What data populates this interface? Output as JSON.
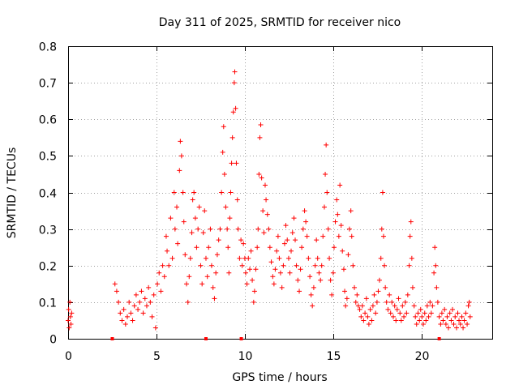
{
  "chart_data": {
    "type": "scatter",
    "title": "Day 311 of 2025, SRMTID for receiver nico",
    "xlabel": "GPS time / hours",
    "ylabel": "SRMTID / TECUs",
    "xlim": [
      0,
      24
    ],
    "ylim": [
      0,
      0.8
    ],
    "xticks": [
      0,
      5,
      10,
      15,
      20
    ],
    "xtick_labels": [
      "0",
      "5",
      "10",
      "15",
      "20"
    ],
    "yticks": [
      0,
      0.1,
      0.2,
      0.3,
      0.4,
      0.5,
      0.6,
      0.7,
      0.8
    ],
    "ytick_labels": [
      "0",
      "0.1",
      "0.2",
      "0.3",
      "0.4",
      "0.5",
      "0.6",
      "0.7",
      "0.8"
    ],
    "grid": true,
    "marker": "+",
    "color": "#ff0000",
    "baseline_markers": [
      2.5,
      7.8,
      9.8,
      21.0
    ],
    "series": [
      {
        "name": "SRMTID",
        "points": [
          [
            0.0,
            0.05
          ],
          [
            0.03,
            0.08
          ],
          [
            0.06,
            0.03
          ],
          [
            0.1,
            0.1
          ],
          [
            0.13,
            0.06
          ],
          [
            0.16,
            0.04
          ],
          [
            0.2,
            0.07
          ],
          [
            2.65,
            0.15
          ],
          [
            2.75,
            0.13
          ],
          [
            2.85,
            0.1
          ],
          [
            2.95,
            0.07
          ],
          [
            3.05,
            0.05
          ],
          [
            3.15,
            0.08
          ],
          [
            3.25,
            0.04
          ],
          [
            3.35,
            0.06
          ],
          [
            3.45,
            0.1
          ],
          [
            3.55,
            0.07
          ],
          [
            3.65,
            0.05
          ],
          [
            3.75,
            0.09
          ],
          [
            3.85,
            0.12
          ],
          [
            3.95,
            0.08
          ],
          [
            4.05,
            0.1
          ],
          [
            4.15,
            0.13
          ],
          [
            4.25,
            0.07
          ],
          [
            4.35,
            0.11
          ],
          [
            4.45,
            0.09
          ],
          [
            4.55,
            0.14
          ],
          [
            4.65,
            0.1
          ],
          [
            4.75,
            0.06
          ],
          [
            4.85,
            0.12
          ],
          [
            4.95,
            0.03
          ],
          [
            5.05,
            0.15
          ],
          [
            5.15,
            0.18
          ],
          [
            5.25,
            0.13
          ],
          [
            5.35,
            0.2
          ],
          [
            5.45,
            0.17
          ],
          [
            5.55,
            0.28
          ],
          [
            5.6,
            0.24
          ],
          [
            5.7,
            0.2
          ],
          [
            5.8,
            0.33
          ],
          [
            5.9,
            0.22
          ],
          [
            6.0,
            0.4
          ],
          [
            6.05,
            0.3
          ],
          [
            6.15,
            0.36
          ],
          [
            6.2,
            0.26
          ],
          [
            6.3,
            0.46
          ],
          [
            6.35,
            0.54
          ],
          [
            6.42,
            0.5
          ],
          [
            6.5,
            0.4
          ],
          [
            6.55,
            0.32
          ],
          [
            6.62,
            0.23
          ],
          [
            6.7,
            0.15
          ],
          [
            6.78,
            0.1
          ],
          [
            6.85,
            0.17
          ],
          [
            6.92,
            0.22
          ],
          [
            7.0,
            0.29
          ],
          [
            7.05,
            0.38
          ],
          [
            7.12,
            0.4
          ],
          [
            7.2,
            0.33
          ],
          [
            7.27,
            0.25
          ],
          [
            7.35,
            0.3
          ],
          [
            7.42,
            0.36
          ],
          [
            7.5,
            0.2
          ],
          [
            7.58,
            0.15
          ],
          [
            7.65,
            0.29
          ],
          [
            7.72,
            0.35
          ],
          [
            7.8,
            0.22
          ],
          [
            7.88,
            0.17
          ],
          [
            7.95,
            0.25
          ],
          [
            8.05,
            0.3
          ],
          [
            8.12,
            0.2
          ],
          [
            8.2,
            0.14
          ],
          [
            8.28,
            0.11
          ],
          [
            8.36,
            0.18
          ],
          [
            8.44,
            0.23
          ],
          [
            8.52,
            0.27
          ],
          [
            8.6,
            0.3
          ],
          [
            8.68,
            0.4
          ],
          [
            8.75,
            0.51
          ],
          [
            8.8,
            0.58
          ],
          [
            8.85,
            0.45
          ],
          [
            8.92,
            0.36
          ],
          [
            9.0,
            0.3
          ],
          [
            9.05,
            0.25
          ],
          [
            9.1,
            0.18
          ],
          [
            9.15,
            0.33
          ],
          [
            9.2,
            0.4
          ],
          [
            9.25,
            0.48
          ],
          [
            9.3,
            0.55
          ],
          [
            9.35,
            0.62
          ],
          [
            9.4,
            0.7
          ],
          [
            9.43,
            0.73
          ],
          [
            9.48,
            0.63
          ],
          [
            9.52,
            0.48
          ],
          [
            9.58,
            0.38
          ],
          [
            9.62,
            0.3
          ],
          [
            9.7,
            0.22
          ],
          [
            9.78,
            0.27
          ],
          [
            9.85,
            0.2
          ],
          [
            9.92,
            0.26
          ],
          [
            10.0,
            0.22
          ],
          [
            10.05,
            0.18
          ],
          [
            10.12,
            0.15
          ],
          [
            10.2,
            0.22
          ],
          [
            10.28,
            0.19
          ],
          [
            10.35,
            0.24
          ],
          [
            10.42,
            0.16
          ],
          [
            10.5,
            0.1
          ],
          [
            10.55,
            0.13
          ],
          [
            10.62,
            0.19
          ],
          [
            10.7,
            0.25
          ],
          [
            10.75,
            0.3
          ],
          [
            10.8,
            0.45
          ],
          [
            10.85,
            0.55
          ],
          [
            10.9,
            0.585
          ],
          [
            10.95,
            0.44
          ],
          [
            11.02,
            0.35
          ],
          [
            11.08,
            0.29
          ],
          [
            11.15,
            0.42
          ],
          [
            11.2,
            0.38
          ],
          [
            11.28,
            0.34
          ],
          [
            11.35,
            0.3
          ],
          [
            11.42,
            0.25
          ],
          [
            11.5,
            0.21
          ],
          [
            11.58,
            0.17
          ],
          [
            11.65,
            0.15
          ],
          [
            11.72,
            0.19
          ],
          [
            11.8,
            0.24
          ],
          [
            11.88,
            0.28
          ],
          [
            11.95,
            0.22
          ],
          [
            12.02,
            0.18
          ],
          [
            12.1,
            0.14
          ],
          [
            12.18,
            0.2
          ],
          [
            12.25,
            0.26
          ],
          [
            12.32,
            0.31
          ],
          [
            12.4,
            0.27
          ],
          [
            12.48,
            0.22
          ],
          [
            12.55,
            0.18
          ],
          [
            12.62,
            0.24
          ],
          [
            12.7,
            0.29
          ],
          [
            12.78,
            0.33
          ],
          [
            12.85,
            0.27
          ],
          [
            12.92,
            0.2
          ],
          [
            13.0,
            0.16
          ],
          [
            13.08,
            0.13
          ],
          [
            13.15,
            0.19
          ],
          [
            13.22,
            0.25
          ],
          [
            13.3,
            0.3
          ],
          [
            13.38,
            0.35
          ],
          [
            13.45,
            0.32
          ],
          [
            13.52,
            0.28
          ],
          [
            13.6,
            0.22
          ],
          [
            13.68,
            0.17
          ],
          [
            13.75,
            0.12
          ],
          [
            13.82,
            0.09
          ],
          [
            13.9,
            0.14
          ],
          [
            13.98,
            0.2
          ],
          [
            14.05,
            0.27
          ],
          [
            14.12,
            0.22
          ],
          [
            14.2,
            0.18
          ],
          [
            14.28,
            0.16
          ],
          [
            14.35,
            0.2
          ],
          [
            14.42,
            0.28
          ],
          [
            14.5,
            0.36
          ],
          [
            14.55,
            0.45
          ],
          [
            14.6,
            0.53
          ],
          [
            14.65,
            0.4
          ],
          [
            14.72,
            0.3
          ],
          [
            14.78,
            0.22
          ],
          [
            14.85,
            0.16
          ],
          [
            14.92,
            0.12
          ],
          [
            15.0,
            0.18
          ],
          [
            15.05,
            0.25
          ],
          [
            15.12,
            0.32
          ],
          [
            15.2,
            0.38
          ],
          [
            15.25,
            0.34
          ],
          [
            15.32,
            0.28
          ],
          [
            15.38,
            0.42
          ],
          [
            15.45,
            0.31
          ],
          [
            15.52,
            0.24
          ],
          [
            15.6,
            0.19
          ],
          [
            15.65,
            0.13
          ],
          [
            15.7,
            0.09
          ],
          [
            15.78,
            0.11
          ],
          [
            15.85,
            0.23
          ],
          [
            15.92,
            0.3
          ],
          [
            16.0,
            0.35
          ],
          [
            16.05,
            0.28
          ],
          [
            16.12,
            0.2
          ],
          [
            16.2,
            0.14
          ],
          [
            16.28,
            0.1
          ],
          [
            16.35,
            0.12
          ],
          [
            16.42,
            0.09
          ],
          [
            16.5,
            0.08
          ],
          [
            16.58,
            0.06
          ],
          [
            16.65,
            0.09
          ],
          [
            16.72,
            0.05
          ],
          [
            16.8,
            0.07
          ],
          [
            16.88,
            0.11
          ],
          [
            16.95,
            0.06
          ],
          [
            17.02,
            0.04
          ],
          [
            17.1,
            0.08
          ],
          [
            17.18,
            0.05
          ],
          [
            17.25,
            0.09
          ],
          [
            17.32,
            0.12
          ],
          [
            17.4,
            0.07
          ],
          [
            17.48,
            0.1
          ],
          [
            17.55,
            0.13
          ],
          [
            17.62,
            0.16
          ],
          [
            17.7,
            0.22
          ],
          [
            17.75,
            0.3
          ],
          [
            17.8,
            0.4
          ],
          [
            17.85,
            0.28
          ],
          [
            17.9,
            0.2
          ],
          [
            17.95,
            0.14
          ],
          [
            18.02,
            0.1
          ],
          [
            18.1,
            0.08
          ],
          [
            18.18,
            0.12
          ],
          [
            18.25,
            0.07
          ],
          [
            18.32,
            0.1
          ],
          [
            18.4,
            0.06
          ],
          [
            18.48,
            0.09
          ],
          [
            18.55,
            0.05
          ],
          [
            18.62,
            0.08
          ],
          [
            18.7,
            0.11
          ],
          [
            18.78,
            0.07
          ],
          [
            18.85,
            0.05
          ],
          [
            18.92,
            0.09
          ],
          [
            19.0,
            0.06
          ],
          [
            19.08,
            0.1
          ],
          [
            19.15,
            0.07
          ],
          [
            19.22,
            0.12
          ],
          [
            19.3,
            0.2
          ],
          [
            19.35,
            0.28
          ],
          [
            19.4,
            0.32
          ],
          [
            19.45,
            0.22
          ],
          [
            19.5,
            0.14
          ],
          [
            19.58,
            0.09
          ],
          [
            19.65,
            0.06
          ],
          [
            19.72,
            0.04
          ],
          [
            19.8,
            0.07
          ],
          [
            19.88,
            0.05
          ],
          [
            19.95,
            0.08
          ],
          [
            20.02,
            0.06
          ],
          [
            20.1,
            0.04
          ],
          [
            20.18,
            0.07
          ],
          [
            20.25,
            0.05
          ],
          [
            20.32,
            0.09
          ],
          [
            20.4,
            0.06
          ],
          [
            20.48,
            0.1
          ],
          [
            20.55,
            0.07
          ],
          [
            20.62,
            0.09
          ],
          [
            20.7,
            0.18
          ],
          [
            20.75,
            0.25
          ],
          [
            20.8,
            0.2
          ],
          [
            20.85,
            0.14
          ],
          [
            20.92,
            0.1
          ],
          [
            21.0,
            0.06
          ],
          [
            21.08,
            0.04
          ],
          [
            21.15,
            0.07
          ],
          [
            21.22,
            0.05
          ],
          [
            21.3,
            0.08
          ],
          [
            21.38,
            0.04
          ],
          [
            21.45,
            0.06
          ],
          [
            21.52,
            0.03
          ],
          [
            21.6,
            0.07
          ],
          [
            21.68,
            0.05
          ],
          [
            21.75,
            0.08
          ],
          [
            21.82,
            0.04
          ],
          [
            21.9,
            0.06
          ],
          [
            21.98,
            0.03
          ],
          [
            22.05,
            0.07
          ],
          [
            22.12,
            0.05
          ],
          [
            22.2,
            0.04
          ],
          [
            22.28,
            0.06
          ],
          [
            22.35,
            0.03
          ],
          [
            22.42,
            0.05
          ],
          [
            22.5,
            0.07
          ],
          [
            22.58,
            0.04
          ],
          [
            22.65,
            0.09
          ],
          [
            22.7,
            0.1
          ],
          [
            22.75,
            0.06
          ]
        ]
      }
    ]
  }
}
